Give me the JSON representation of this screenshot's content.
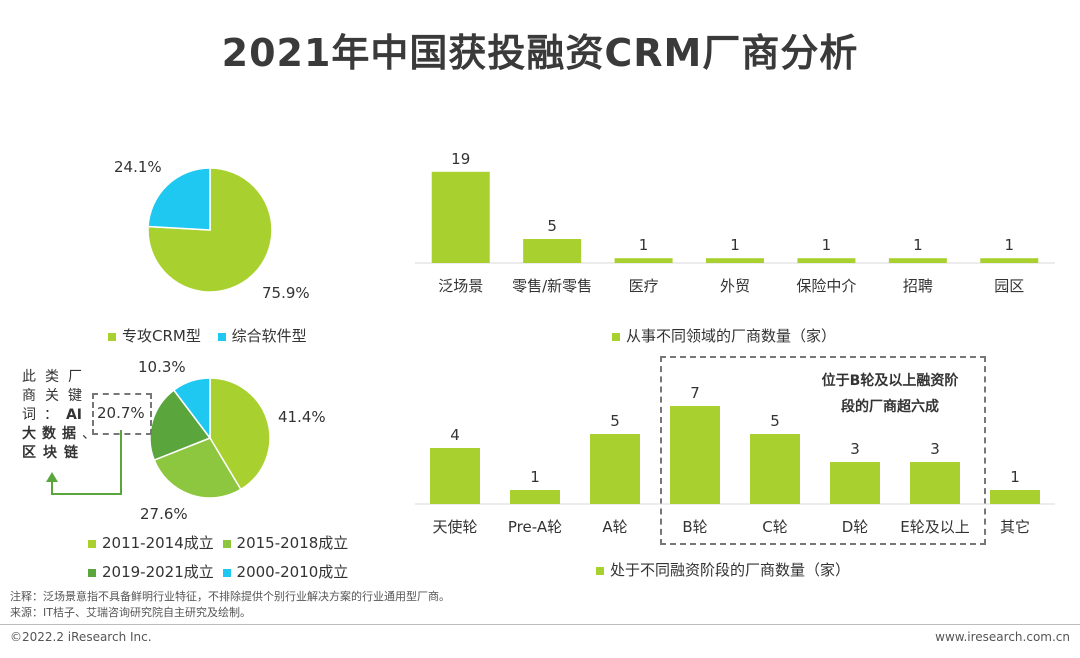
{
  "title": "2021年中国获投融资CRM厂商分析",
  "colors": {
    "green": "#a8d130",
    "cyan": "#1ec8f0",
    "dark_green": "#5aa53c",
    "mid_green": "#8dc63f",
    "text": "#333333"
  },
  "pie1": {
    "type": "pie",
    "slices": [
      {
        "name": "专攻CRM型",
        "value": 75.9,
        "label": "75.9%",
        "color": "#a8d130"
      },
      {
        "name": "综合软件型",
        "value": 24.1,
        "label": "24.1%",
        "color": "#1ec8f0"
      }
    ],
    "legend": [
      "专攻CRM型",
      "综合软件型"
    ]
  },
  "pie2": {
    "type": "pie",
    "slices": [
      {
        "name": "2011-2014成立",
        "value": 41.4,
        "label": "41.4%",
        "color": "#a8d130"
      },
      {
        "name": "2015-2018成立",
        "value": 27.6,
        "label": "27.6%",
        "color": "#8dc63f"
      },
      {
        "name": "2019-2021成立",
        "value": 20.7,
        "label": "20.7%",
        "color": "#5aa53c"
      },
      {
        "name": "2000-2010成立",
        "value": 10.3,
        "label": "10.3%",
        "color": "#1ec8f0"
      }
    ],
    "legend": [
      "2011-2014成立",
      "2015-2018成立",
      "2019-2021成立",
      "2000-2010成立"
    ]
  },
  "keyword_note": {
    "rows": [
      [
        "此",
        "类",
        "厂"
      ],
      [
        "商",
        "关",
        "键"
      ],
      [
        "词",
        "：",
        "AI"
      ],
      [
        "大",
        "数",
        "据",
        "、"
      ],
      [
        "区",
        "块",
        "链"
      ]
    ]
  },
  "chart_data": [
    {
      "type": "bar",
      "title": "从事不同领域的厂商数量（家）",
      "categories": [
        "泛场景",
        "零售/新零售",
        "医疗",
        "外贸",
        "保险中介",
        "招聘",
        "园区"
      ],
      "values": [
        19,
        5,
        1,
        1,
        1,
        1,
        1
      ],
      "ylim": [
        0,
        20
      ],
      "legend": "从事不同领域的厂商数量（家）"
    },
    {
      "type": "bar",
      "title": "处于不同融资阶段的厂商数量（家）",
      "categories": [
        "天使轮",
        "Pre-A轮",
        "A轮",
        "B轮",
        "C轮",
        "D轮",
        "E轮及以上",
        "其它"
      ],
      "values": [
        4,
        1,
        5,
        7,
        5,
        3,
        3,
        1
      ],
      "ylim": [
        0,
        8
      ],
      "legend": "处于不同融资阶段的厂商数量（家）",
      "annotation": "位于B轮及以上融资阶段的厂商超六成"
    },
    {
      "type": "pie",
      "title": "",
      "categories": [
        "专攻CRM型",
        "综合软件型"
      ],
      "values": [
        75.9,
        24.1
      ]
    },
    {
      "type": "pie",
      "title": "",
      "categories": [
        "2011-2014成立",
        "2015-2018成立",
        "2019-2021成立",
        "2000-2010成立"
      ],
      "values": [
        41.4,
        27.6,
        20.7,
        10.3
      ]
    }
  ],
  "callout": {
    "line1": "位于B轮及以上融资阶",
    "line2": "段的厂商超六成"
  },
  "notes": {
    "line1": "注释：泛场景意指不具备鲜明行业特征，不排除提供个别行业解决方案的行业通用型厂商。",
    "line2": "来源：IT桔子、艾瑞咨询研究院自主研究及绘制。"
  },
  "footer": {
    "left": "©2022.2 iResearch Inc.",
    "right": "www.iresearch.com.cn"
  }
}
